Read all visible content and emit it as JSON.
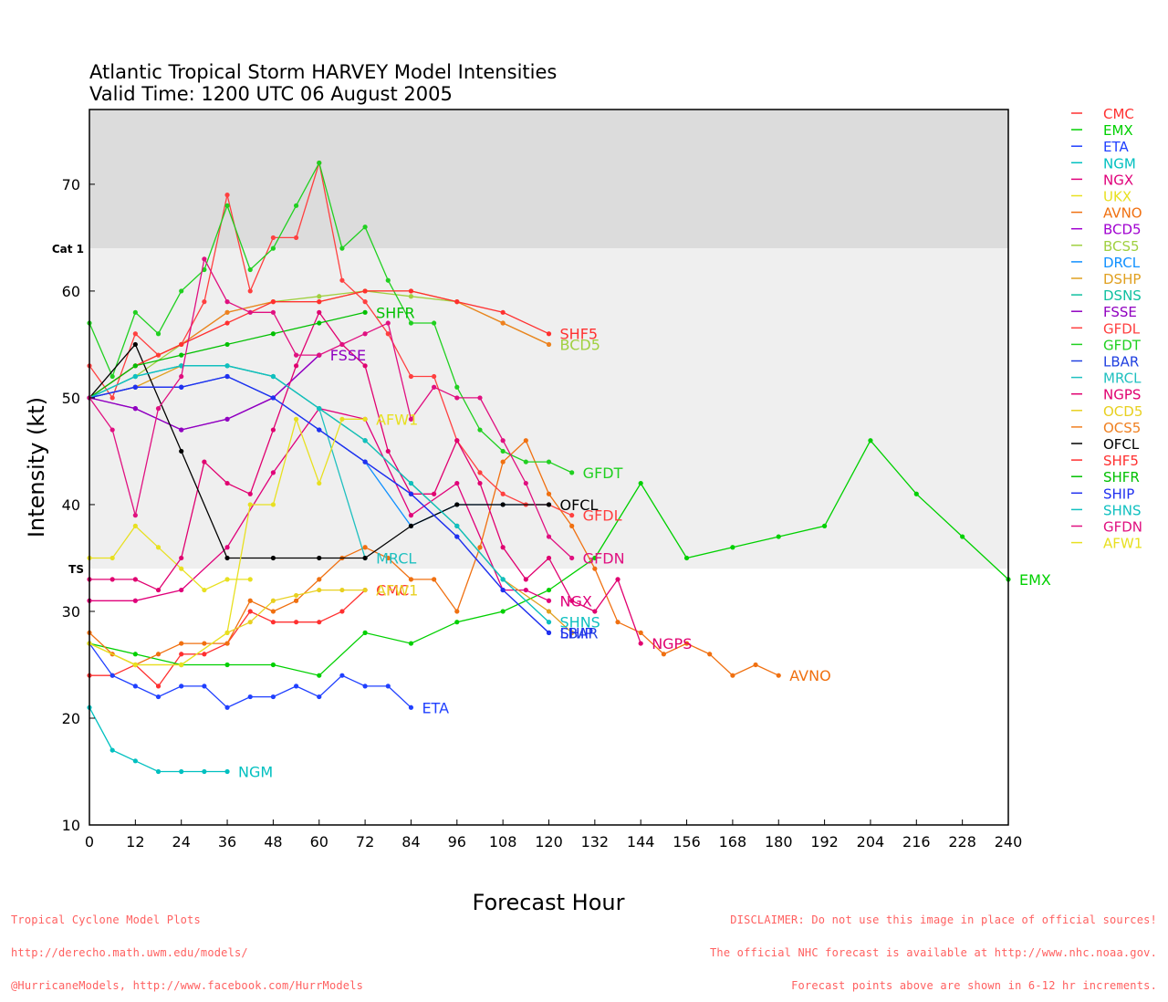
{
  "footer": {
    "left": [
      "Tropical Cyclone Model Plots",
      "http://derecho.math.uwm.edu/models/",
      "@HurricaneModels, http://www.facebook.com/HurrModels"
    ],
    "right": [
      "DISCLAIMER: Do not use this image in place of official sources!",
      "The official NHC forecast is available at http://www.nhc.noaa.gov.",
      "Forecast points above are shown in 6-12 hr increments."
    ]
  },
  "chart_data": {
    "type": "line",
    "title": "Atlantic Tropical Storm HARVEY Model Intensities",
    "subtitle": "Valid Time: 1200 UTC 06 August 2005",
    "xlabel": "Forecast Hour",
    "ylabel": "Intensity (kt)",
    "xlim": [
      0,
      240
    ],
    "ylim": [
      10,
      77
    ],
    "xticks": [
      0,
      12,
      24,
      36,
      48,
      60,
      72,
      84,
      96,
      108,
      120,
      132,
      144,
      156,
      168,
      180,
      192,
      204,
      216,
      228,
      240
    ],
    "yticks": [
      10,
      20,
      30,
      40,
      50,
      60,
      70
    ],
    "grid": false,
    "legend_position": "right",
    "bands": [
      {
        "label": "Cat 1",
        "from": 64,
        "to": 77,
        "color": "#dcdcdc"
      },
      {
        "label": "TS",
        "from": 34,
        "to": 64,
        "color": "#efefef"
      }
    ],
    "series": [
      {
        "name": "CMC",
        "color": "#ff3030",
        "label": "CMC",
        "x": [
          0,
          6,
          12,
          18,
          24,
          30,
          36,
          42,
          48,
          54,
          60,
          66,
          72
        ],
        "y": [
          24,
          24,
          25,
          23,
          26,
          26,
          27,
          30,
          29,
          29,
          29,
          30,
          32
        ]
      },
      {
        "name": "EMX",
        "color": "#00d000",
        "label": "EMX",
        "x": [
          0,
          12,
          24,
          36,
          48,
          60,
          72,
          84,
          96,
          108,
          120,
          132,
          144,
          156,
          168,
          180,
          192,
          204,
          216,
          228,
          240
        ],
        "y": [
          27,
          26,
          25,
          25,
          25,
          24,
          28,
          27,
          29,
          30,
          32,
          35,
          42,
          35,
          36,
          37,
          38,
          46,
          41,
          37,
          33
        ]
      },
      {
        "name": "ETA",
        "color": "#2040ff",
        "label": "ETA",
        "x": [
          0,
          6,
          12,
          18,
          24,
          30,
          36,
          42,
          48,
          54,
          60,
          66,
          72,
          78,
          84
        ],
        "y": [
          27,
          24,
          23,
          22,
          23,
          23,
          21,
          22,
          22,
          23,
          22,
          24,
          23,
          23,
          21
        ]
      },
      {
        "name": "NGM",
        "color": "#00c0c0",
        "label": "NGM",
        "x": [
          0,
          6,
          12,
          18,
          24,
          30,
          36
        ],
        "y": [
          21,
          17,
          16,
          15,
          15,
          15,
          15
        ]
      },
      {
        "name": "NGX",
        "color": "#e0007a",
        "label": "NGX",
        "x": [
          0,
          12,
          24,
          36,
          48,
          60,
          72,
          84,
          96,
          108,
          114,
          120
        ],
        "y": [
          31,
          31,
          32,
          36,
          43,
          49,
          48,
          39,
          42,
          32,
          32,
          31
        ]
      },
      {
        "name": "UKX",
        "color": "#e8e020",
        "label": "",
        "x": [
          0,
          6,
          12,
          18,
          24,
          30,
          36,
          42
        ],
        "y": [
          35,
          35,
          38,
          36,
          34,
          32,
          33,
          33
        ]
      },
      {
        "name": "AVNO",
        "color": "#f07010",
        "label": "AVNO",
        "x": [
          0,
          6,
          12,
          18,
          24,
          30,
          36,
          42,
          48,
          54,
          60,
          66,
          72,
          78,
          84,
          90,
          96,
          102,
          108,
          114,
          120,
          126,
          132,
          138,
          144,
          150,
          156,
          162,
          168,
          174,
          180
        ],
        "y": [
          28,
          26,
          25,
          26,
          27,
          27,
          27,
          31,
          30,
          31,
          33,
          35,
          36,
          35,
          33,
          33,
          30,
          36,
          44,
          46,
          41,
          38,
          34,
          29,
          28,
          26,
          27,
          26,
          24,
          25,
          24
        ]
      },
      {
        "name": "BCD5",
        "color": "#a000d0",
        "label": "",
        "x": [
          0,
          12,
          24,
          36,
          48,
          60
        ],
        "y": [
          50,
          49,
          47,
          48,
          50,
          54
        ]
      },
      {
        "name": "BCS5",
        "color": "#a0d040",
        "label": "BCD5",
        "x": [
          0,
          12,
          24,
          36,
          48,
          60,
          72,
          84,
          96,
          108,
          120
        ],
        "y": [
          50,
          52,
          55,
          58,
          59,
          59.5,
          60,
          59.5,
          59,
          57,
          55
        ]
      },
      {
        "name": "DRCL",
        "color": "#1090ff",
        "label": "",
        "x": [
          0,
          12,
          24,
          36,
          48,
          60,
          72,
          84,
          96,
          108,
          120
        ],
        "y": [
          50,
          51,
          51,
          52,
          50,
          47,
          44,
          38,
          40,
          40,
          40
        ]
      },
      {
        "name": "DSHP",
        "color": "#e0a020",
        "label": "",
        "x": [
          0,
          12,
          24,
          36,
          48,
          60,
          72,
          84,
          96,
          108,
          120,
          126
        ],
        "y": [
          50,
          51,
          53,
          53,
          52,
          49,
          46,
          42,
          38,
          33,
          30,
          28
        ]
      },
      {
        "name": "DSNS",
        "color": "#10c0a0",
        "label": "",
        "x": [
          0,
          12,
          24,
          36,
          48,
          60,
          72,
          84,
          96,
          108,
          120
        ],
        "y": [
          50,
          52,
          53,
          53,
          52,
          49,
          46,
          42,
          38,
          33,
          29
        ]
      },
      {
        "name": "FSSE",
        "color": "#9000c0",
        "label": "FSSE",
        "x": [
          0,
          12,
          24,
          36,
          48,
          60
        ],
        "y": [
          50,
          49,
          47,
          48,
          50,
          54
        ]
      },
      {
        "name": "GFDL",
        "color": "#ff4040",
        "label": "GFDL",
        "x": [
          0,
          6,
          12,
          18,
          24,
          30,
          36,
          42,
          48,
          54,
          60,
          66,
          72,
          78,
          84,
          90,
          96,
          102,
          108,
          114,
          120,
          126
        ],
        "y": [
          53,
          50,
          56,
          54,
          55,
          59,
          69,
          60,
          65,
          65,
          72,
          61,
          59,
          56,
          52,
          52,
          46,
          43,
          41,
          40,
          40,
          39
        ]
      },
      {
        "name": "GFDT",
        "color": "#20d020",
        "label": "GFDT",
        "x": [
          0,
          6,
          12,
          18,
          24,
          30,
          36,
          42,
          48,
          54,
          60,
          66,
          72,
          78,
          84,
          90,
          96,
          102,
          108,
          114,
          120,
          126
        ],
        "y": [
          57,
          52,
          58,
          56,
          60,
          62,
          68,
          62,
          64,
          68,
          72,
          64,
          66,
          61,
          57,
          57,
          51,
          47,
          45,
          44,
          44,
          43
        ]
      },
      {
        "name": "LBAR",
        "color": "#2040e0",
        "label": "LBAR",
        "x": [
          0,
          12,
          24,
          36,
          48,
          60,
          72,
          84,
          96,
          108,
          120
        ],
        "y": [
          50,
          51,
          51,
          52,
          50,
          47,
          44,
          41,
          37,
          32,
          28
        ]
      },
      {
        "name": "MRCL",
        "color": "#20c0c0",
        "label": "MRCL",
        "x": [
          0,
          12,
          24,
          36,
          48,
          60,
          72
        ],
        "y": [
          50,
          52,
          53,
          53,
          52,
          49,
          35
        ]
      },
      {
        "name": "NGPS",
        "color": "#e00070",
        "label": "NGPS",
        "x": [
          0,
          6,
          12,
          18,
          24,
          30,
          36,
          42,
          48,
          54,
          60,
          66,
          72,
          78,
          84,
          90,
          96,
          102,
          108,
          114,
          120,
          126,
          132,
          138,
          144
        ],
        "y": [
          33,
          33,
          33,
          32,
          35,
          44,
          42,
          41,
          47,
          53,
          58,
          55,
          53,
          45,
          41,
          41,
          46,
          42,
          36,
          33,
          35,
          31,
          30,
          33,
          27
        ]
      },
      {
        "name": "OCD5",
        "color": "#e8d020",
        "label": "AFW1",
        "x": [
          0,
          12,
          24,
          36,
          42,
          48,
          54,
          60,
          66,
          72
        ],
        "y": [
          27,
          25,
          25,
          28,
          29,
          31,
          31.5,
          32,
          32,
          32
        ]
      },
      {
        "name": "OCS5",
        "color": "#f08020",
        "label": "",
        "x": [
          0,
          12,
          24,
          36,
          48,
          60,
          72,
          84,
          96,
          108,
          120
        ],
        "y": [
          50,
          53,
          55,
          58,
          59,
          59,
          60,
          60,
          59,
          57,
          55
        ]
      },
      {
        "name": "OFCL",
        "color": "#000000",
        "label": "OFCL",
        "x": [
          0,
          12,
          24,
          36,
          48,
          60,
          72,
          84,
          96,
          108,
          120
        ],
        "y": [
          50,
          55,
          45,
          35,
          35,
          35,
          35,
          38,
          40,
          40,
          40
        ]
      },
      {
        "name": "SHF5",
        "color": "#ff3030",
        "label": "SHF5",
        "x": [
          0,
          12,
          24,
          36,
          48,
          60,
          72,
          84,
          96,
          108,
          120
        ],
        "y": [
          50,
          53,
          55,
          57,
          59,
          59,
          60,
          60,
          59,
          58,
          56
        ]
      },
      {
        "name": "SHFR",
        "color": "#00c000",
        "label": "SHFR",
        "x": [
          0,
          12,
          24,
          36,
          48,
          60,
          72
        ],
        "y": [
          50,
          53,
          54,
          55,
          56,
          57,
          58
        ]
      },
      {
        "name": "SHIP",
        "color": "#2030f0",
        "label": "SHIP",
        "x": [
          0,
          12,
          24,
          36,
          48,
          60,
          72,
          84,
          96,
          108,
          120
        ],
        "y": [
          50,
          51,
          51,
          52,
          50,
          47,
          44,
          41,
          37,
          32,
          28
        ]
      },
      {
        "name": "SHNS",
        "color": "#10c0c0",
        "label": "SHNS",
        "x": [
          0,
          12,
          24,
          36,
          48,
          60,
          72,
          84,
          96,
          108,
          120
        ],
        "y": [
          50,
          52,
          53,
          53,
          52,
          49,
          46,
          42,
          38,
          33,
          29
        ]
      },
      {
        "name": "GFDN",
        "color": "#e01080",
        "label": "GFDN",
        "x": [
          0,
          6,
          12,
          18,
          24,
          30,
          36,
          42,
          48,
          54,
          60,
          66,
          72,
          78,
          84,
          90,
          96,
          102,
          108,
          114,
          120,
          126
        ],
        "y": [
          50,
          47,
          39,
          49,
          52,
          63,
          59,
          58,
          58,
          54,
          54,
          55,
          56,
          57,
          48,
          51,
          50,
          50,
          46,
          42,
          37,
          35
        ]
      },
      {
        "name": "AFW1",
        "color": "#e8e020",
        "label": "AFW1",
        "x": [
          0,
          12,
          24,
          36,
          42,
          48,
          54,
          60,
          66,
          72
        ],
        "y": [
          27,
          25,
          25,
          28,
          40,
          40,
          48,
          42,
          48,
          48
        ]
      }
    ]
  }
}
